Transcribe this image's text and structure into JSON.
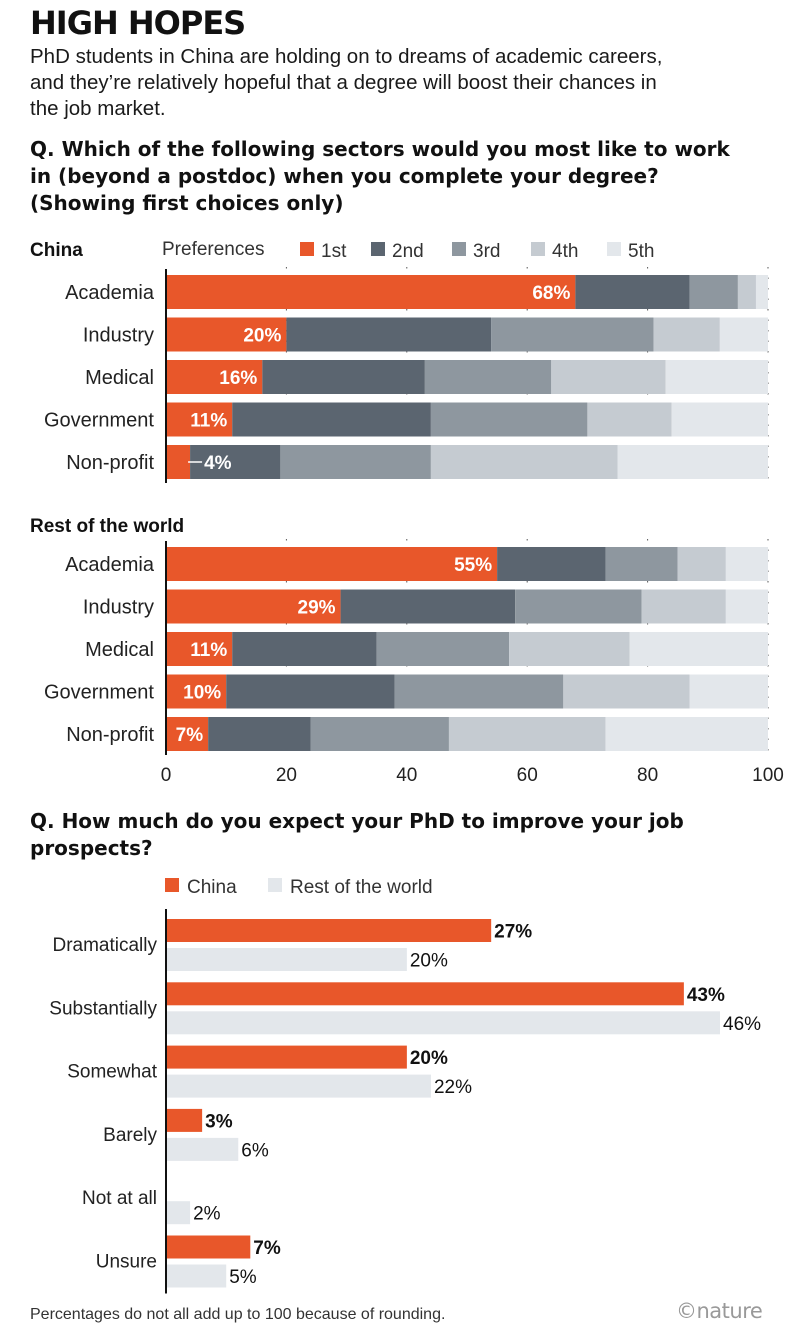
{
  "title": "HIGH HOPES",
  "subtitle": "PhD students in China are holding on to dreams of academic careers, and they’re relatively hopeful that a degree will boost their chances in the job market.",
  "question1": "Q. Which of the following sectors would you most like to work in (beyond a postdoc) when you complete your degree? (Showing first choices only)",
  "question2": "Q. How much do you expect your PhD to improve your job prospects?",
  "footnote": "Percentages do not all add up to 100 because of rounding.",
  "credit": "©nature",
  "colors": {
    "first": "#e8572a",
    "second": "#5b6570",
    "third": "#8e979f",
    "fourth": "#c5cbd1",
    "fifth": "#e3e7eb",
    "china": "#e8572a",
    "rest": "#e3e7eb"
  },
  "chart_data": [
    {
      "type": "bar",
      "orientation": "horizontal",
      "stacked": true,
      "legend_title": "Preferences",
      "legend_placement": "top",
      "legend": [
        "1st",
        "2nd",
        "3rd",
        "4th",
        "5th"
      ],
      "categories": [
        "Academia",
        "Industry",
        "Medical",
        "Government",
        "Non-profit"
      ],
      "xlim": [
        0,
        100
      ],
      "xticks": [
        0,
        20,
        40,
        60,
        80,
        100
      ],
      "panels": [
        {
          "label": "China",
          "series": [
            {
              "name": "1st",
              "values": [
                68,
                20,
                16,
                11,
                4
              ]
            },
            {
              "name": "2nd",
              "values": [
                19,
                34,
                27,
                33,
                15
              ]
            },
            {
              "name": "3rd",
              "values": [
                8,
                27,
                21,
                26,
                25
              ]
            },
            {
              "name": "4th",
              "values": [
                3,
                11,
                19,
                14,
                31
              ]
            },
            {
              "name": "5th",
              "values": [
                2,
                8,
                17,
                16,
                25
              ]
            }
          ],
          "value_labels": [
            "68%",
            "20%",
            "16%",
            "11%",
            "4%"
          ]
        },
        {
          "label": "Rest of the world",
          "series": [
            {
              "name": "1st",
              "values": [
                55,
                29,
                11,
                10,
                7
              ]
            },
            {
              "name": "2nd",
              "values": [
                18,
                29,
                24,
                28,
                17
              ]
            },
            {
              "name": "3rd",
              "values": [
                12,
                21,
                22,
                28,
                23
              ]
            },
            {
              "name": "4th",
              "values": [
                8,
                14,
                20,
                21,
                26
              ]
            },
            {
              "name": "5th",
              "values": [
                7,
                7,
                23,
                13,
                27
              ]
            }
          ],
          "value_labels": [
            "55%",
            "29%",
            "11%",
            "10%",
            "7%"
          ]
        }
      ]
    },
    {
      "type": "bar",
      "orientation": "horizontal",
      "grouped": true,
      "legend_placement": "top",
      "categories": [
        "Dramatically",
        "Substantially",
        "Somewhat",
        "Barely",
        "Not at all",
        "Unsure"
      ],
      "series": [
        {
          "name": "China",
          "values": [
            27,
            43,
            20,
            3,
            0,
            7
          ],
          "labels": [
            "27%",
            "43%",
            "20%",
            "3%",
            "",
            "7%"
          ]
        },
        {
          "name": "Rest of the world",
          "values": [
            20,
            46,
            22,
            6,
            2,
            5
          ],
          "labels": [
            "20%",
            "46%",
            "22%",
            "6%",
            "2%",
            "5%"
          ]
        }
      ],
      "xlim": [
        0,
        46
      ]
    }
  ]
}
